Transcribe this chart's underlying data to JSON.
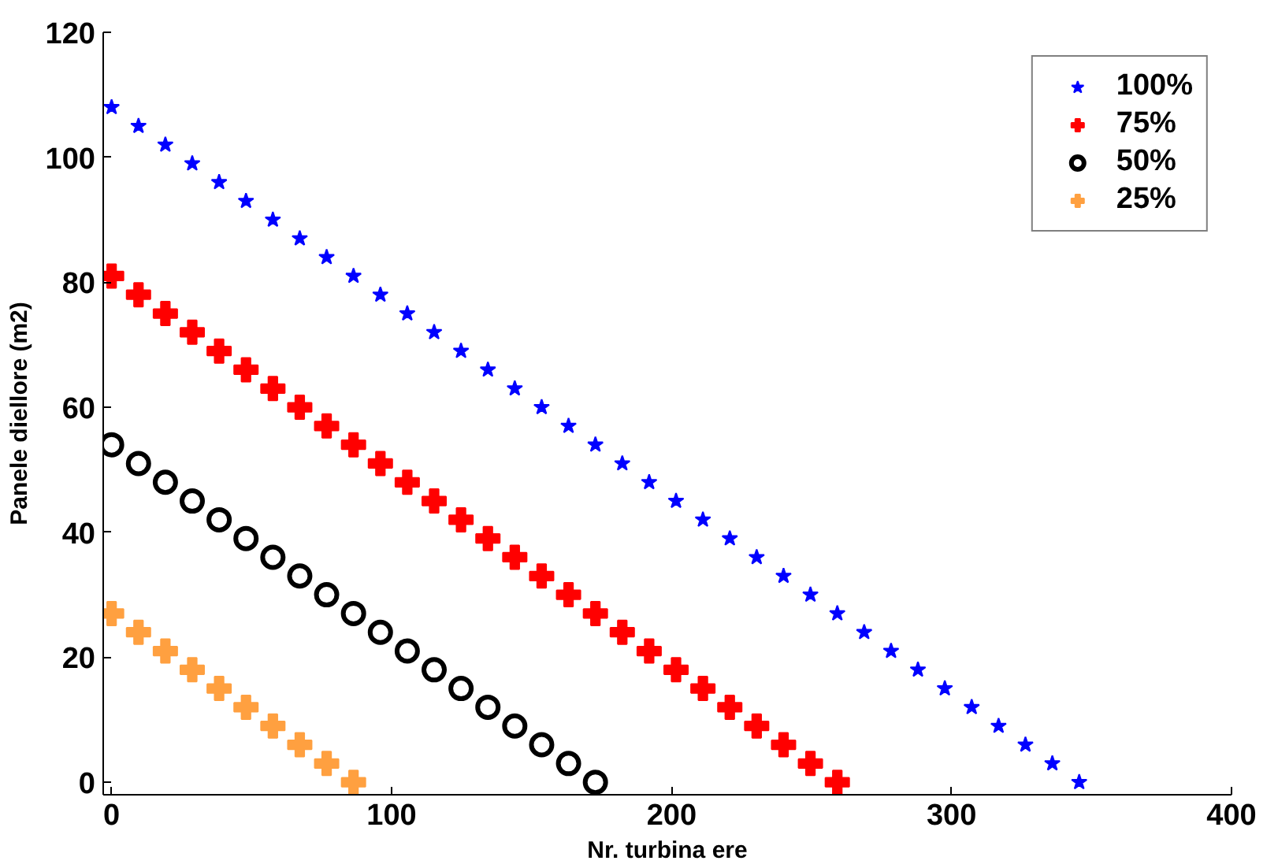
{
  "chart_data": {
    "type": "scatter",
    "xlabel": "Nr. turbina ere",
    "ylabel": "Panele diellore (m2)",
    "xlim": [
      -3,
      400
    ],
    "ylim": [
      -2,
      120
    ],
    "xticks": [
      0,
      100,
      200,
      300,
      400
    ],
    "yticks": [
      0,
      20,
      40,
      60,
      80,
      100,
      120
    ],
    "grid": false,
    "legend": "top right",
    "series": [
      {
        "name": "100%",
        "color": "#0000ff",
        "marker": "star",
        "x": [
          0,
          9.6,
          19.2,
          28.8,
          38.4,
          48,
          57.6,
          67.2,
          76.8,
          86.4,
          96,
          105.6,
          115.2,
          124.8,
          134.4,
          144,
          153.6,
          163.2,
          172.8,
          182.4,
          192,
          201.6,
          211.2,
          220.8,
          230.4,
          240,
          249.6,
          259.2,
          268.8,
          278.4,
          288,
          297.6,
          307.2,
          316.8,
          326.4,
          336,
          345.6
        ],
        "values": [
          108,
          105,
          102,
          99,
          96,
          93,
          90,
          87,
          84,
          81,
          78,
          75,
          72,
          69,
          66,
          63,
          60,
          57,
          54,
          51,
          48,
          45,
          42,
          39,
          36,
          33,
          30,
          27,
          24,
          21,
          18,
          15,
          12,
          9,
          6,
          3,
          0
        ]
      },
      {
        "name": "75%",
        "color": "#ff0000",
        "marker": "cross",
        "x": [
          0,
          9.6,
          19.2,
          28.8,
          38.4,
          48,
          57.6,
          67.2,
          76.8,
          86.4,
          96,
          105.6,
          115.2,
          124.8,
          134.4,
          144,
          153.6,
          163.2,
          172.8,
          182.4,
          192,
          201.6,
          211.2,
          220.8,
          230.4,
          240,
          249.6,
          259.2
        ],
        "values": [
          81,
          78,
          75,
          72,
          69,
          66,
          63,
          60,
          57,
          54,
          51,
          48,
          45,
          42,
          39,
          36,
          33,
          30,
          27,
          24,
          21,
          18,
          15,
          12,
          9,
          6,
          3,
          0
        ]
      },
      {
        "name": "50%",
        "color": "#000000",
        "marker": "circle",
        "x": [
          0,
          9.6,
          19.2,
          28.8,
          38.4,
          48,
          57.6,
          67.2,
          76.8,
          86.4,
          96,
          105.6,
          115.2,
          124.8,
          134.4,
          144,
          153.6,
          163.2,
          172.8
        ],
        "values": [
          54,
          51,
          48,
          45,
          42,
          39,
          36,
          33,
          30,
          27,
          24,
          21,
          18,
          15,
          12,
          9,
          6,
          3,
          0
        ]
      },
      {
        "name": "25%",
        "color": "#ffa040",
        "marker": "cross",
        "x": [
          0,
          9.6,
          19.2,
          28.8,
          38.4,
          48,
          57.6,
          67.2,
          76.8,
          86.4
        ],
        "values": [
          27,
          24,
          21,
          18,
          15,
          12,
          9,
          6,
          3,
          0
        ]
      }
    ]
  }
}
